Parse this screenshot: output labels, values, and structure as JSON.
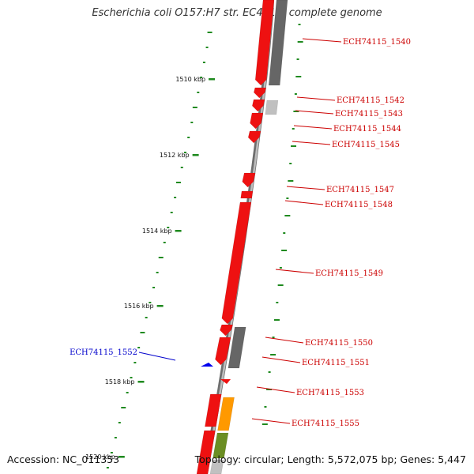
{
  "title": "Escherichia coli O157:H7 str. EC4115, complete genome",
  "footer": {
    "accession": "Accession: NC_011353",
    "summary": "Topology: circular; Length: 5,572,075 bp; Genes: 5,447"
  },
  "colors": {
    "backbone": "#8a8a8a",
    "gc_dots": "#1f8a1f",
    "cds_forward": "#ee1111",
    "cds_other": "#666666",
    "cds_light": "#c0c0c0",
    "cds_orange": "#ff9900",
    "cds_olive": "#6b8e23",
    "label_red": "#cc0000",
    "label_blue": "#0000cc",
    "blue_marker": "#0000ee"
  },
  "ticks": [
    {
      "label": "1510 kbp"
    },
    {
      "label": "1512 kbp"
    },
    {
      "label": "1514 kbp"
    },
    {
      "label": "1516 kbp"
    },
    {
      "label": "1518 kbp"
    },
    {
      "label": "1520 kbp"
    }
  ],
  "genes": [
    {
      "label": "ECH74115_1540",
      "color": "red"
    },
    {
      "label": "ECH74115_1542",
      "color": "red"
    },
    {
      "label": "ECH74115_1543",
      "color": "red"
    },
    {
      "label": "ECH74115_1544",
      "color": "red"
    },
    {
      "label": "ECH74115_1545",
      "color": "red"
    },
    {
      "label": "ECH74115_1547",
      "color": "red"
    },
    {
      "label": "ECH74115_1548",
      "color": "red"
    },
    {
      "label": "ECH74115_1549",
      "color": "red"
    },
    {
      "label": "ECH74115_1550",
      "color": "red"
    },
    {
      "label": "ECH74115_1551",
      "color": "red"
    },
    {
      "label": "ECH74115_1552",
      "color": "blue"
    },
    {
      "label": "ECH74115_1553",
      "color": "red"
    },
    {
      "label": "ECH74115_1555",
      "color": "red"
    }
  ]
}
